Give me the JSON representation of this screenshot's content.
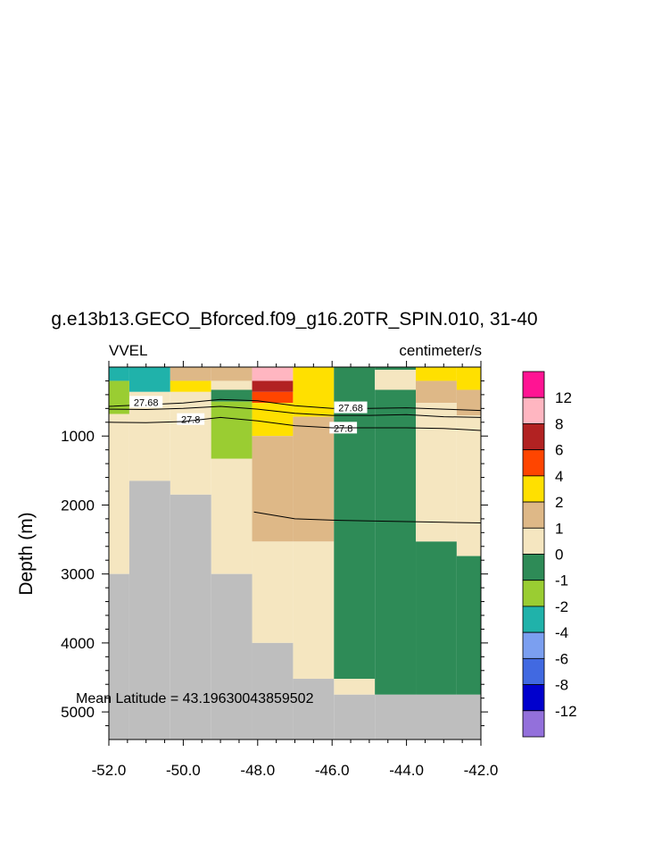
{
  "title": "g.e13b13.GECO_Bforced.f09_g16.20TR_SPIN.010, 31-40",
  "left_label": "VVEL",
  "right_label": "centimeter/s",
  "annotation": "Mean Latitude = 43.19630043859502",
  "colors": {
    "land": "#bebebe",
    "contour_line": "#000000"
  },
  "chart_data": {
    "type": "heatmap",
    "variable": "VVEL",
    "units": "centimeter/s",
    "xlim": [
      -52.0,
      -42.0
    ],
    "ylim": [
      5400,
      0
    ],
    "ylabel": "Depth (m)",
    "xlabel": "",
    "x_ticks": [
      -52.0,
      -50.0,
      -48.0,
      -46.0,
      -44.0,
      -42.0
    ],
    "x_tick_labels": [
      "-52.0",
      "-50.0",
      "-48.0",
      "-46.0",
      "-44.0",
      "-42.0"
    ],
    "y_ticks": [
      1000,
      2000,
      3000,
      4000,
      5000
    ],
    "y_tick_labels": [
      "1000",
      "2000",
      "3000",
      "4000",
      "5000"
    ],
    "colorbar": {
      "labels": [
        "12",
        "8",
        "6",
        "4",
        "2",
        "1",
        "0",
        "-1",
        "-2",
        "-4",
        "-6",
        "-8",
        "-12"
      ],
      "colors_top_to_bottom": [
        "#ff1493",
        "#ffb6c1",
        "#b22222",
        "#ff4500",
        "#ffe000",
        "#deb887",
        "#f5e6c0",
        "#2e8b57",
        "#9acd32",
        "#20b2aa",
        "#7b9ff0",
        "#4169e1",
        "#0000cd",
        "#9370db"
      ]
    },
    "bin_colors": {
      "p2_4": "#ffe000",
      "p1_2": "#deb887",
      "p0_1": "#f5e6c0",
      "n1_0": "#2e8b57",
      "n2_1": "#9acd32",
      "n4_2": "#20b2aa",
      "p6_8": "#ffb6c1",
      "p4_6": "#b22222",
      "p3_4": "#ff4500",
      "land": "#bebebe"
    },
    "cells": [
      {
        "x": [
          -52.0,
          -51.45
        ],
        "y": [
          0,
          200
        ],
        "bin": "n4_2"
      },
      {
        "x": [
          -51.45,
          -50.35
        ],
        "y": [
          0,
          360
        ],
        "bin": "n4_2"
      },
      {
        "x": [
          -52.0,
          -51.45
        ],
        "y": [
          200,
          680
        ],
        "bin": "n2_1"
      },
      {
        "x": [
          -52.0,
          -51.45
        ],
        "y": [
          680,
          3000
        ],
        "bin": "p0_1"
      },
      {
        "x": [
          -51.45,
          -50.35
        ],
        "y": [
          360,
          1650
        ],
        "bin": "p0_1"
      },
      {
        "x": [
          -50.35,
          -49.25
        ],
        "y": [
          0,
          200
        ],
        "bin": "p1_2"
      },
      {
        "x": [
          -50.35,
          -49.25
        ],
        "y": [
          200,
          360
        ],
        "bin": "p2_4"
      },
      {
        "x": [
          -50.35,
          -49.25
        ],
        "y": [
          360,
          1850
        ],
        "bin": "p0_1"
      },
      {
        "x": [
          -49.25,
          -48.15
        ],
        "y": [
          0,
          200
        ],
        "bin": "p1_2"
      },
      {
        "x": [
          -49.25,
          -48.15
        ],
        "y": [
          200,
          330
        ],
        "bin": "p0_1"
      },
      {
        "x": [
          -49.25,
          -48.15
        ],
        "y": [
          330,
          500
        ],
        "bin": "n1_0"
      },
      {
        "x": [
          -49.25,
          -48.15
        ],
        "y": [
          500,
          1330
        ],
        "bin": "n2_1"
      },
      {
        "x": [
          -49.25,
          -48.15
        ],
        "y": [
          1330,
          3000
        ],
        "bin": "p0_1"
      },
      {
        "x": [
          -48.15,
          -47.05
        ],
        "y": [
          0,
          200
        ],
        "bin": "p6_8"
      },
      {
        "x": [
          -48.15,
          -47.05
        ],
        "y": [
          200,
          360
        ],
        "bin": "p4_6"
      },
      {
        "x": [
          -48.15,
          -47.05
        ],
        "y": [
          360,
          520
        ],
        "bin": "p3_4"
      },
      {
        "x": [
          -48.15,
          -47.05
        ],
        "y": [
          520,
          1000
        ],
        "bin": "p2_4"
      },
      {
        "x": [
          -48.15,
          -47.05
        ],
        "y": [
          1000,
          2530
        ],
        "bin": "p1_2"
      },
      {
        "x": [
          -48.15,
          -47.05
        ],
        "y": [
          2530,
          4000
        ],
        "bin": "p0_1"
      },
      {
        "x": [
          -47.05,
          -45.95
        ],
        "y": [
          0,
          720
        ],
        "bin": "p2_4"
      },
      {
        "x": [
          -47.05,
          -45.95
        ],
        "y": [
          720,
          2530
        ],
        "bin": "p1_2"
      },
      {
        "x": [
          -47.05,
          -45.95
        ],
        "y": [
          2530,
          4520
        ],
        "bin": "p0_1"
      },
      {
        "x": [
          -45.95,
          -44.85
        ],
        "y": [
          0,
          4520
        ],
        "bin": "n1_0"
      },
      {
        "x": [
          -45.95,
          -44.85
        ],
        "y": [
          4520,
          4750
        ],
        "bin": "p0_1"
      },
      {
        "x": [
          -44.85,
          -43.75
        ],
        "y": [
          0,
          40
        ],
        "bin": "n1_0"
      },
      {
        "x": [
          -44.85,
          -43.75
        ],
        "y": [
          40,
          330
        ],
        "bin": "p0_1"
      },
      {
        "x": [
          -44.85,
          -43.75
        ],
        "y": [
          330,
          4750
        ],
        "bin": "n1_0"
      },
      {
        "x": [
          -43.75,
          -42.65
        ],
        "y": [
          0,
          200
        ],
        "bin": "p2_4"
      },
      {
        "x": [
          -43.75,
          -42.65
        ],
        "y": [
          200,
          520
        ],
        "bin": "p1_2"
      },
      {
        "x": [
          -43.75,
          -42.65
        ],
        "y": [
          520,
          2530
        ],
        "bin": "p0_1"
      },
      {
        "x": [
          -43.75,
          -42.65
        ],
        "y": [
          2530,
          4750
        ],
        "bin": "n1_0"
      },
      {
        "x": [
          -42.65,
          -42.0
        ],
        "y": [
          0,
          330
        ],
        "bin": "p2_4"
      },
      {
        "x": [
          -42.65,
          -42.0
        ],
        "y": [
          330,
          700
        ],
        "bin": "p1_2"
      },
      {
        "x": [
          -42.65,
          -42.0
        ],
        "y": [
          700,
          2740
        ],
        "bin": "p0_1"
      },
      {
        "x": [
          -42.65,
          -42.0
        ],
        "y": [
          2740,
          4750
        ],
        "bin": "n1_0"
      },
      {
        "x": [
          -51.45,
          -50.35
        ],
        "y": [
          1650,
          5400
        ],
        "bin": "land"
      },
      {
        "x": [
          -50.35,
          -49.25
        ],
        "y": [
          1850,
          5400
        ],
        "bin": "land"
      },
      {
        "x": [
          -52.0,
          -51.45
        ],
        "y": [
          3000,
          5400
        ],
        "bin": "land"
      },
      {
        "x": [
          -49.25,
          -48.15
        ],
        "y": [
          3000,
          5400
        ],
        "bin": "land"
      },
      {
        "x": [
          -48.15,
          -47.05
        ],
        "y": [
          4000,
          5400
        ],
        "bin": "land"
      },
      {
        "x": [
          -47.05,
          -45.95
        ],
        "y": [
          4520,
          5400
        ],
        "bin": "land"
      },
      {
        "x": [
          -45.95,
          -44.85
        ],
        "y": [
          4750,
          5400
        ],
        "bin": "land"
      },
      {
        "x": [
          -44.85,
          -42.0
        ],
        "y": [
          4750,
          5400
        ],
        "bin": "land"
      }
    ],
    "contours": [
      {
        "label": "27.68",
        "label_at": [
          -51.0,
          510
        ],
        "label2": "27.68",
        "label2_at": [
          -45.5,
          590
        ],
        "points": [
          [
            -52.0,
            570
          ],
          [
            -51.0,
            545
          ],
          [
            -50.0,
            520
          ],
          [
            -49.0,
            470
          ],
          [
            -48.0,
            490
          ],
          [
            -47.0,
            560
          ],
          [
            -46.0,
            600
          ],
          [
            -45.0,
            600
          ],
          [
            -44.0,
            590
          ],
          [
            -43.0,
            610
          ],
          [
            -42.0,
            630
          ]
        ]
      },
      {
        "label": "27.8",
        "label_at": [
          -49.8,
          760
        ],
        "label2": "27.8",
        "label2_at": [
          -45.7,
          885
        ],
        "points": [
          [
            -52.0,
            610
          ],
          [
            -51.0,
            615
          ],
          [
            -50.0,
            600
          ],
          [
            -49.0,
            570
          ],
          [
            -48.0,
            610
          ],
          [
            -47.0,
            670
          ],
          [
            -46.0,
            700
          ],
          [
            -45.0,
            700
          ],
          [
            -44.0,
            690
          ],
          [
            -43.0,
            720
          ],
          [
            -42.0,
            730
          ]
        ]
      },
      {
        "label": "",
        "points": [
          [
            -52.0,
            800
          ],
          [
            -51.0,
            805
          ],
          [
            -50.0,
            790
          ],
          [
            -49.0,
            730
          ],
          [
            -48.0,
            780
          ],
          [
            -47.0,
            850
          ],
          [
            -46.0,
            880
          ],
          [
            -45.0,
            880
          ],
          [
            -44.0,
            880
          ],
          [
            -43.0,
            890
          ],
          [
            -42.0,
            920
          ]
        ]
      },
      {
        "label": "",
        "points": [
          [
            -48.1,
            2100
          ],
          [
            -47.0,
            2200
          ],
          [
            -46.0,
            2220
          ],
          [
            -45.0,
            2230
          ],
          [
            -44.0,
            2240
          ],
          [
            -43.0,
            2250
          ],
          [
            -42.0,
            2260
          ]
        ]
      }
    ]
  }
}
